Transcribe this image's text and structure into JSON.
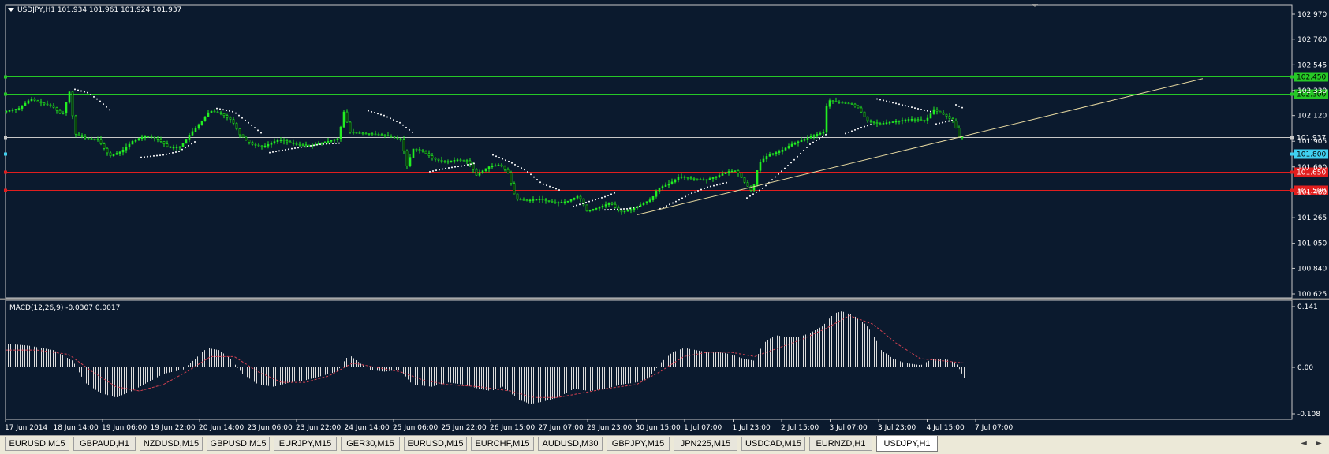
{
  "main_header": {
    "symbol_line": "USDJPY,H1  101.934 101.961 101.924 101.937",
    "collapse_icon": "triangle-down-icon"
  },
  "macd_header": "MACD(12,26,9) -0.0307 0.0017",
  "colors": {
    "background": "#0b1a2e",
    "grid": "#c8c8c8",
    "bull": "#22ee22",
    "trendline": "#e6d8a0",
    "green_level": "#26c826",
    "cyan_level": "#40d0f0",
    "red_level": "#e11e1e",
    "macd_hist": "#dcdcdc",
    "macd_signal": "#d04050"
  },
  "price_axis": {
    "ticks": [
      "102.970",
      "102.760",
      "102.545",
      "102.330",
      "102.120",
      "101.905",
      "101.690",
      "101.480",
      "101.265",
      "101.050",
      "100.840",
      "100.625"
    ],
    "min": 100.625,
    "max": 102.97
  },
  "macd_axis": {
    "ticks": [
      "0.141",
      "0.00",
      "-0.108"
    ],
    "min": -0.108,
    "max": 0.141
  },
  "levels": [
    {
      "name": "level-102450",
      "price": 102.45,
      "label": "102.450",
      "color": "#26c826",
      "label_bg": "#26c826",
      "label_fg": "#000000"
    },
    {
      "name": "level-102300",
      "price": 102.3,
      "label": "102.300",
      "color": "#26c826",
      "label_bg": "#26c826",
      "label_fg": "#000000"
    },
    {
      "name": "level-101937",
      "price": 101.937,
      "label": "101.937",
      "color": "#c8c8c8",
      "label_bg": "#0b1a2e",
      "label_fg": "#ffffff"
    },
    {
      "name": "level-101800",
      "price": 101.8,
      "label": "101.800",
      "color": "#40d0f0",
      "label_bg": "#40d0f0",
      "label_fg": "#000000"
    },
    {
      "name": "level-101650",
      "price": 101.65,
      "label": "101.650",
      "color": "#e11e1e",
      "label_bg": "#e11e1e",
      "label_fg": "#ffffff"
    },
    {
      "name": "level-101500",
      "price": 101.5,
      "label": "101.500",
      "color": "#e11e1e",
      "label_bg": "#e11e1e",
      "label_fg": "#ffffff"
    }
  ],
  "time_axis": {
    "labels": [
      "17 Jun 2014",
      "18 Jun 14:00",
      "19 Jun 06:00",
      "19 Jun 22:00",
      "20 Jun 14:00",
      "23 Jun 06:00",
      "23 Jun 22:00",
      "24 Jun 14:00",
      "25 Jun 06:00",
      "25 Jun 22:00",
      "26 Jun 15:00",
      "27 Jun 07:00",
      "29 Jun 23:00",
      "30 Jun 15:00",
      "1 Jul 07:00",
      "1 Jul 23:00",
      "2 Jul 15:00",
      "3 Jul 07:00",
      "3 Jul 23:00",
      "4 Jul 15:00",
      "7 Jul 07:00"
    ]
  },
  "chart_data": {
    "type": "line",
    "symbol": "USDJPY",
    "timeframe": "H1",
    "ohlc_last": {
      "open": 101.934,
      "high": 101.961,
      "low": 101.924,
      "close": 101.937
    },
    "ylim": [
      100.625,
      102.97
    ],
    "price_path": [
      [
        0,
        102.15
      ],
      [
        20,
        102.18
      ],
      [
        35,
        102.26
      ],
      [
        50,
        102.22
      ],
      [
        62,
        102.2
      ],
      [
        75,
        102.12
      ],
      [
        85,
        102.34
      ],
      [
        90,
        101.97
      ],
      [
        105,
        101.93
      ],
      [
        120,
        101.92
      ],
      [
        135,
        101.78
      ],
      [
        150,
        101.82
      ],
      [
        165,
        101.91
      ],
      [
        180,
        101.95
      ],
      [
        195,
        101.93
      ],
      [
        210,
        101.85
      ],
      [
        225,
        101.86
      ],
      [
        235,
        101.95
      ],
      [
        250,
        102.06
      ],
      [
        262,
        102.16
      ],
      [
        275,
        102.14
      ],
      [
        290,
        102.08
      ],
      [
        300,
        101.96
      ],
      [
        315,
        101.88
      ],
      [
        330,
        101.86
      ],
      [
        350,
        101.92
      ],
      [
        370,
        101.88
      ],
      [
        390,
        101.87
      ],
      [
        410,
        101.9
      ],
      [
        425,
        101.93
      ],
      [
        432,
        102.15
      ],
      [
        440,
        101.98
      ],
      [
        460,
        101.97
      ],
      [
        480,
        101.96
      ],
      [
        505,
        101.92
      ],
      [
        512,
        101.7
      ],
      [
        520,
        101.84
      ],
      [
        530,
        101.83
      ],
      [
        545,
        101.76
      ],
      [
        560,
        101.73
      ],
      [
        575,
        101.75
      ],
      [
        590,
        101.74
      ],
      [
        600,
        101.62
      ],
      [
        615,
        101.69
      ],
      [
        630,
        101.71
      ],
      [
        640,
        101.64
      ],
      [
        650,
        101.42
      ],
      [
        665,
        101.41
      ],
      [
        680,
        101.42
      ],
      [
        700,
        101.39
      ],
      [
        715,
        101.4
      ],
      [
        730,
        101.45
      ],
      [
        740,
        101.32
      ],
      [
        755,
        101.35
      ],
      [
        770,
        101.39
      ],
      [
        782,
        101.31
      ],
      [
        795,
        101.33
      ],
      [
        810,
        101.38
      ],
      [
        822,
        101.42
      ],
      [
        830,
        101.51
      ],
      [
        845,
        101.55
      ],
      [
        858,
        101.61
      ],
      [
        875,
        101.59
      ],
      [
        890,
        101.58
      ],
      [
        905,
        101.61
      ],
      [
        918,
        101.65
      ],
      [
        930,
        101.66
      ],
      [
        940,
        101.56
      ],
      [
        950,
        101.48
      ],
      [
        958,
        101.72
      ],
      [
        970,
        101.79
      ],
      [
        985,
        101.82
      ],
      [
        1000,
        101.88
      ],
      [
        1015,
        101.92
      ],
      [
        1030,
        101.96
      ],
      [
        1040,
        101.98
      ],
      [
        1045,
        102.25
      ],
      [
        1060,
        102.23
      ],
      [
        1075,
        102.22
      ],
      [
        1085,
        102.18
      ],
      [
        1095,
        102.08
      ],
      [
        1110,
        102.05
      ],
      [
        1130,
        102.07
      ],
      [
        1150,
        102.09
      ],
      [
        1170,
        102.08
      ],
      [
        1180,
        102.17
      ],
      [
        1195,
        102.12
      ],
      [
        1205,
        102.07
      ],
      [
        1212,
        101.94
      ]
    ],
    "sar_segments": [
      [
        [
          88,
          102.34
        ],
        [
          105,
          102.31
        ],
        [
          120,
          102.24
        ],
        [
          135,
          102.15
        ]
      ],
      [
        [
          172,
          101.77
        ],
        [
          200,
          101.79
        ],
        [
          220,
          101.82
        ],
        [
          240,
          101.9
        ]
      ],
      [
        [
          268,
          102.18
        ],
        [
          290,
          102.15
        ],
        [
          310,
          102.05
        ],
        [
          325,
          101.97
        ]
      ],
      [
        [
          335,
          101.81
        ],
        [
          360,
          101.84
        ],
        [
          380,
          101.86
        ],
        [
          400,
          101.88
        ],
        [
          425,
          101.89
        ]
      ],
      [
        [
          460,
          102.16
        ],
        [
          480,
          102.12
        ],
        [
          500,
          102.06
        ],
        [
          518,
          101.97
        ]
      ],
      [
        [
          538,
          101.65
        ],
        [
          560,
          101.68
        ],
        [
          580,
          101.7
        ],
        [
          595,
          101.72
        ]
      ],
      [
        [
          618,
          101.79
        ],
        [
          640,
          101.73
        ],
        [
          660,
          101.66
        ],
        [
          680,
          101.55
        ],
        [
          705,
          101.49
        ]
      ],
      [
        [
          720,
          101.36
        ],
        [
          740,
          101.4
        ],
        [
          760,
          101.44
        ],
        [
          775,
          101.48
        ]
      ],
      [
        [
          760,
          101.33
        ],
        [
          790,
          101.34
        ],
        [
          805,
          101.36
        ]
      ],
      [
        [
          830,
          101.34
        ],
        [
          850,
          101.4
        ],
        [
          870,
          101.47
        ],
        [
          890,
          101.52
        ],
        [
          915,
          101.56
        ]
      ],
      [
        [
          940,
          101.43
        ],
        [
          960,
          101.51
        ],
        [
          980,
          101.63
        ],
        [
          1000,
          101.75
        ],
        [
          1020,
          101.88
        ],
        [
          1040,
          101.96
        ]
      ],
      [
        [
          1065,
          101.97
        ],
        [
          1085,
          102.02
        ],
        [
          1100,
          102.05
        ]
      ],
      [
        [
          1105,
          102.26
        ],
        [
          1130,
          102.22
        ],
        [
          1155,
          102.18
        ],
        [
          1175,
          102.15
        ]
      ],
      [
        [
          1180,
          102.05
        ],
        [
          1200,
          102.08
        ]
      ],
      [
        [
          1205,
          102.21
        ],
        [
          1215,
          102.18
        ]
      ]
    ],
    "trendline": {
      "x0": 808,
      "y0": 101.29,
      "x1": 1525,
      "y1": 102.43
    },
    "macd_histogram": [
      [
        0,
        0.055
      ],
      [
        30,
        0.05
      ],
      [
        60,
        0.04
      ],
      [
        85,
        0.015
      ],
      [
        100,
        -0.035
      ],
      [
        120,
        -0.06
      ],
      [
        140,
        -0.07
      ],
      [
        160,
        -0.055
      ],
      [
        180,
        -0.035
      ],
      [
        200,
        -0.015
      ],
      [
        225,
        -0.005
      ],
      [
        240,
        0.02
      ],
      [
        255,
        0.045
      ],
      [
        270,
        0.04
      ],
      [
        285,
        0.02
      ],
      [
        300,
        -0.015
      ],
      [
        320,
        -0.04
      ],
      [
        340,
        -0.045
      ],
      [
        360,
        -0.035
      ],
      [
        380,
        -0.03
      ],
      [
        400,
        -0.02
      ],
      [
        420,
        -0.01
      ],
      [
        435,
        0.03
      ],
      [
        445,
        0.015
      ],
      [
        460,
        -0.005
      ],
      [
        480,
        -0.01
      ],
      [
        500,
        -0.005
      ],
      [
        515,
        -0.04
      ],
      [
        540,
        -0.045
      ],
      [
        560,
        -0.035
      ],
      [
        580,
        -0.04
      ],
      [
        600,
        -0.05
      ],
      [
        615,
        -0.055
      ],
      [
        630,
        -0.045
      ],
      [
        650,
        -0.075
      ],
      [
        665,
        -0.085
      ],
      [
        680,
        -0.08
      ],
      [
        700,
        -0.07
      ],
      [
        720,
        -0.05
      ],
      [
        740,
        -0.055
      ],
      [
        760,
        -0.05
      ],
      [
        780,
        -0.04
      ],
      [
        800,
        -0.035
      ],
      [
        815,
        -0.025
      ],
      [
        830,
        0.01
      ],
      [
        845,
        0.035
      ],
      [
        860,
        0.045
      ],
      [
        875,
        0.04
      ],
      [
        890,
        0.035
      ],
      [
        905,
        0.035
      ],
      [
        920,
        0.03
      ],
      [
        935,
        0.02
      ],
      [
        950,
        0.015
      ],
      [
        960,
        0.055
      ],
      [
        975,
        0.075
      ],
      [
        990,
        0.07
      ],
      [
        1005,
        0.07
      ],
      [
        1020,
        0.08
      ],
      [
        1035,
        0.095
      ],
      [
        1050,
        0.125
      ],
      [
        1060,
        0.13
      ],
      [
        1075,
        0.12
      ],
      [
        1090,
        0.1
      ],
      [
        1100,
        0.075
      ],
      [
        1110,
        0.04
      ],
      [
        1125,
        0.02
      ],
      [
        1140,
        0.01
      ],
      [
        1160,
        0.005
      ],
      [
        1175,
        0.02
      ],
      [
        1190,
        0.02
      ],
      [
        1205,
        0.01
      ],
      [
        1215,
        -0.025
      ]
    ],
    "macd_signal": [
      [
        0,
        0.04
      ],
      [
        40,
        0.04
      ],
      [
        80,
        0.03
      ],
      [
        110,
        -0.01
      ],
      [
        140,
        -0.045
      ],
      [
        170,
        -0.055
      ],
      [
        200,
        -0.04
      ],
      [
        230,
        -0.01
      ],
      [
        260,
        0.025
      ],
      [
        290,
        0.025
      ],
      [
        320,
        -0.01
      ],
      [
        350,
        -0.035
      ],
      [
        380,
        -0.035
      ],
      [
        410,
        -0.02
      ],
      [
        440,
        0.01
      ],
      [
        470,
        0.0
      ],
      [
        500,
        -0.01
      ],
      [
        530,
        -0.03
      ],
      [
        560,
        -0.04
      ],
      [
        600,
        -0.045
      ],
      [
        640,
        -0.055
      ],
      [
        670,
        -0.07
      ],
      [
        700,
        -0.07
      ],
      [
        730,
        -0.06
      ],
      [
        760,
        -0.05
      ],
      [
        800,
        -0.04
      ],
      [
        830,
        -0.01
      ],
      [
        860,
        0.025
      ],
      [
        890,
        0.035
      ],
      [
        920,
        0.035
      ],
      [
        950,
        0.025
      ],
      [
        980,
        0.045
      ],
      [
        1010,
        0.065
      ],
      [
        1040,
        0.09
      ],
      [
        1070,
        0.12
      ],
      [
        1100,
        0.1
      ],
      [
        1130,
        0.055
      ],
      [
        1160,
        0.02
      ],
      [
        1190,
        0.015
      ],
      [
        1215,
        0.01
      ]
    ]
  },
  "tabs": [
    {
      "label": "EURUSD,M15"
    },
    {
      "label": "GBPAUD,H1"
    },
    {
      "label": "NZDUSD,M15"
    },
    {
      "label": "GBPUSD,M15"
    },
    {
      "label": "EURJPY,M15"
    },
    {
      "label": "GER30,M15"
    },
    {
      "label": "EURUSD,M15"
    },
    {
      "label": "EURCHF,M15"
    },
    {
      "label": "AUDUSD,M30"
    },
    {
      "label": "GBPJPY,M15"
    },
    {
      "label": "JPN225,M15"
    },
    {
      "label": "USDCAD,M15"
    },
    {
      "label": "EURNZD,H1"
    },
    {
      "label": "USDJPY,H1"
    }
  ],
  "tab_nav": {
    "left": "◄",
    "right": "►"
  }
}
